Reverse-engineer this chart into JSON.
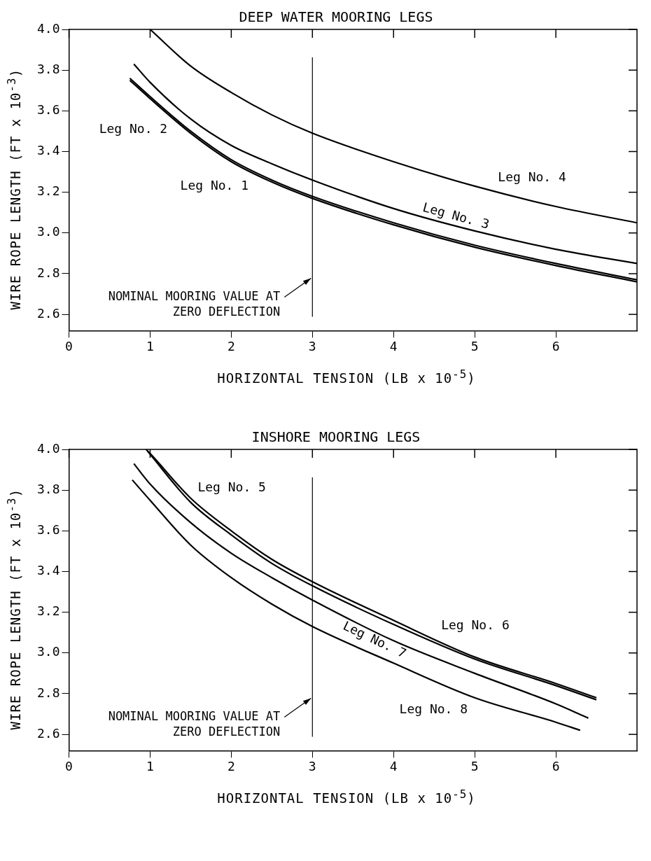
{
  "chart_data": [
    {
      "type": "line",
      "title": "DEEP WATER MOORING LEGS",
      "xlabel": "HORIZONTAL TENSION (LB x 10$^{-5}$)",
      "ylabel": "WIRE ROPE LENGTH (FT x 10$^{-3}$)",
      "xlim": [
        0,
        7
      ],
      "xticks": [
        0,
        1,
        2,
        3,
        4,
        5,
        6
      ],
      "ylim": [
        2.52,
        4.0
      ],
      "yticks": [
        {
          "value": 2.6,
          "label": "2.6"
        },
        {
          "value": 2.8,
          "label": "2.8"
        },
        {
          "value": 3.0,
          "label": "3.0"
        },
        {
          "value": 3.2,
          "label": "3.2"
        },
        {
          "value": 3.4,
          "label": "3.4"
        },
        {
          "value": 3.6,
          "label": "3.6"
        },
        {
          "value": 3.8,
          "label": "3.8"
        },
        {
          "value": 4.0,
          "label": "4.0"
        }
      ],
      "grid": false,
      "legend": false,
      "marker": "none",
      "line_style": "solid",
      "series": [
        {
          "name": "Leg No. 1",
          "color": "#000000",
          "x": [
            0.75,
            1,
            1.5,
            2,
            2.5,
            3,
            4,
            5,
            6,
            7
          ],
          "values": [
            3.75,
            3.66,
            3.49,
            3.35,
            3.25,
            3.17,
            3.04,
            2.93,
            2.84,
            2.76
          ]
        },
        {
          "name": "Leg No. 2",
          "color": "#000000",
          "x": [
            0.75,
            1,
            1.5,
            2,
            2.5,
            3,
            4,
            5,
            6,
            7
          ],
          "values": [
            3.76,
            3.67,
            3.5,
            3.36,
            3.26,
            3.18,
            3.05,
            2.94,
            2.85,
            2.77
          ]
        },
        {
          "name": "Leg No. 3",
          "color": "#000000",
          "x": [
            0.8,
            1,
            1.5,
            2,
            2.5,
            3,
            4,
            5,
            6,
            7
          ],
          "values": [
            3.83,
            3.74,
            3.56,
            3.43,
            3.34,
            3.26,
            3.12,
            3.01,
            2.92,
            2.85
          ]
        },
        {
          "name": "Leg No. 4",
          "color": "#000000",
          "x": [
            1,
            1.5,
            2,
            2.5,
            3,
            4,
            5,
            6,
            7
          ],
          "values": [
            4.0,
            3.82,
            3.69,
            3.58,
            3.49,
            3.35,
            3.23,
            3.13,
            3.05
          ]
        }
      ],
      "ref_lines": [
        {
          "axis": "x",
          "value": 3,
          "label": "NOMINAL MOORING VALUE AT ZERO DEFLECTION",
          "color": "#000000"
        }
      ]
    },
    {
      "type": "line",
      "title": "INSHORE MOORING LEGS",
      "xlabel": "HORIZONTAL TENSION (LB x 10$^{-5}$)",
      "ylabel": "WIRE ROPE LENGTH (FT x 10$^{-3}$)",
      "xlim": [
        0,
        7
      ],
      "xticks": [
        0,
        1,
        2,
        3,
        4,
        5,
        6
      ],
      "ylim": [
        2.52,
        4.0
      ],
      "yticks": [
        {
          "value": 2.6,
          "label": "2.6"
        },
        {
          "value": 2.8,
          "label": "2.8"
        },
        {
          "value": 3.0,
          "label": "3.0"
        },
        {
          "value": 3.2,
          "label": "3.2"
        },
        {
          "value": 3.4,
          "label": "3.4"
        },
        {
          "value": 3.6,
          "label": "3.6"
        },
        {
          "value": 3.8,
          "label": "3.8"
        },
        {
          "value": 4.0,
          "label": "4.0"
        }
      ],
      "grid": false,
      "legend": false,
      "marker": "none",
      "line_style": "solid",
      "series": [
        {
          "name": "Leg No. 5",
          "color": "#000000",
          "x": [
            0.97,
            1.5,
            2,
            2.5,
            3,
            4,
            5,
            6,
            6.5
          ],
          "values": [
            3.99,
            3.74,
            3.58,
            3.44,
            3.33,
            3.14,
            2.97,
            2.84,
            2.77
          ]
        },
        {
          "name": "Leg No. 6",
          "color": "#000000",
          "x": [
            0.95,
            1,
            1.5,
            2,
            2.5,
            3,
            4,
            5,
            6,
            6.5
          ],
          "values": [
            4.0,
            3.98,
            3.76,
            3.6,
            3.46,
            3.35,
            3.16,
            2.98,
            2.85,
            2.78
          ]
        },
        {
          "name": "Leg No. 7",
          "color": "#000000",
          "x": [
            0.8,
            1,
            1.5,
            2,
            2.5,
            3,
            4,
            5,
            6,
            6.4
          ],
          "values": [
            3.93,
            3.83,
            3.64,
            3.49,
            3.37,
            3.26,
            3.06,
            2.9,
            2.75,
            2.68
          ]
        },
        {
          "name": "Leg No. 8",
          "color": "#000000",
          "x": [
            0.78,
            1,
            1.5,
            2,
            2.5,
            3,
            4,
            5,
            6,
            6.3
          ],
          "values": [
            3.85,
            3.75,
            3.53,
            3.37,
            3.24,
            3.13,
            2.95,
            2.78,
            2.66,
            2.62
          ]
        }
      ],
      "ref_lines": [
        {
          "axis": "x",
          "value": 3,
          "label": "NOMINAL MOORING VALUE AT ZERO DEFLECTION",
          "color": "#000000"
        }
      ]
    }
  ]
}
